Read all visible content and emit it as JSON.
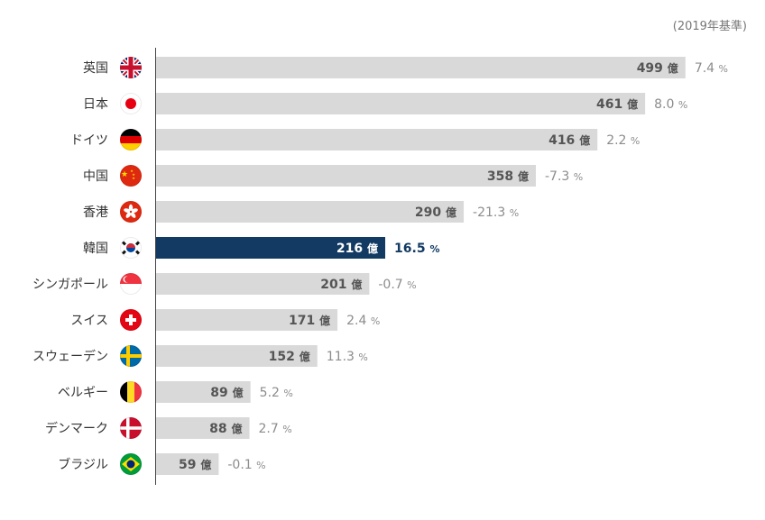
{
  "note": "(2019年基準)",
  "chart_data": {
    "type": "bar",
    "orientation": "horizontal",
    "categories": [
      "英国",
      "日本",
      "ドイツ",
      "中国",
      "香港",
      "韓国",
      "シンガポール",
      "スイス",
      "スウェーデン",
      "ベルギー",
      "デンマーク",
      "ブラジル"
    ],
    "values": [
      499,
      461,
      416,
      358,
      290,
      216,
      201,
      171,
      152,
      89,
      88,
      59
    ],
    "value_unit": "億",
    "growth": [
      "7.4",
      "8.0",
      "2.2",
      "-7.3",
      "-21.3",
      "16.5",
      "-0.7",
      "2.4",
      "11.3",
      "5.2",
      "2.7",
      "-0.1"
    ],
    "growth_unit": "%",
    "highlight": "韓国",
    "flag_icons": [
      "uk-flag-icon",
      "japan-flag-icon",
      "germany-flag-icon",
      "china-flag-icon",
      "hongkong-flag-icon",
      "korea-flag-icon",
      "singapore-flag-icon",
      "switzerland-flag-icon",
      "sweden-flag-icon",
      "belgium-flag-icon",
      "denmark-flag-icon",
      "brazil-flag-icon"
    ],
    "xlim": [
      0,
      540
    ],
    "grid": false,
    "colors": {
      "bar": "#d9d9d9",
      "highlight": "#123a63",
      "value_text": "#555555",
      "growth_text": "#8c8c8c"
    }
  }
}
